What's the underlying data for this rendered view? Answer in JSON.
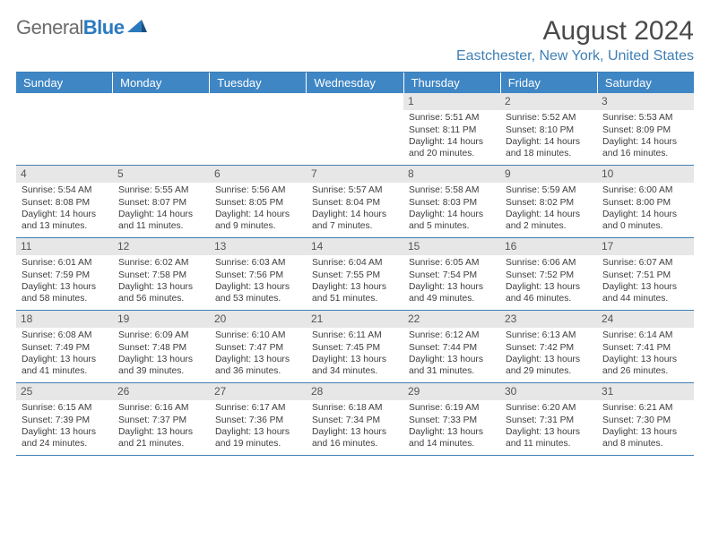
{
  "logo": {
    "general": "General",
    "blue": "Blue"
  },
  "title": "August 2024",
  "location": "Eastchester, New York, United States",
  "colors": {
    "header_bg": "#3f86c5",
    "header_text": "#ffffff",
    "rule": "#3f7fb5",
    "daynum_bg": "#e7e7e7",
    "location": "#3f7fb5",
    "logo_gray": "#6b6b6b",
    "logo_blue": "#2b7abf"
  },
  "weekdays": [
    "Sunday",
    "Monday",
    "Tuesday",
    "Wednesday",
    "Thursday",
    "Friday",
    "Saturday"
  ],
  "weeks": [
    [
      {
        "n": "",
        "sr": "",
        "ss": "",
        "dl": ""
      },
      {
        "n": "",
        "sr": "",
        "ss": "",
        "dl": ""
      },
      {
        "n": "",
        "sr": "",
        "ss": "",
        "dl": ""
      },
      {
        "n": "",
        "sr": "",
        "ss": "",
        "dl": ""
      },
      {
        "n": "1",
        "sr": "Sunrise: 5:51 AM",
        "ss": "Sunset: 8:11 PM",
        "dl": "Daylight: 14 hours and 20 minutes."
      },
      {
        "n": "2",
        "sr": "Sunrise: 5:52 AM",
        "ss": "Sunset: 8:10 PM",
        "dl": "Daylight: 14 hours and 18 minutes."
      },
      {
        "n": "3",
        "sr": "Sunrise: 5:53 AM",
        "ss": "Sunset: 8:09 PM",
        "dl": "Daylight: 14 hours and 16 minutes."
      }
    ],
    [
      {
        "n": "4",
        "sr": "Sunrise: 5:54 AM",
        "ss": "Sunset: 8:08 PM",
        "dl": "Daylight: 14 hours and 13 minutes."
      },
      {
        "n": "5",
        "sr": "Sunrise: 5:55 AM",
        "ss": "Sunset: 8:07 PM",
        "dl": "Daylight: 14 hours and 11 minutes."
      },
      {
        "n": "6",
        "sr": "Sunrise: 5:56 AM",
        "ss": "Sunset: 8:05 PM",
        "dl": "Daylight: 14 hours and 9 minutes."
      },
      {
        "n": "7",
        "sr": "Sunrise: 5:57 AM",
        "ss": "Sunset: 8:04 PM",
        "dl": "Daylight: 14 hours and 7 minutes."
      },
      {
        "n": "8",
        "sr": "Sunrise: 5:58 AM",
        "ss": "Sunset: 8:03 PM",
        "dl": "Daylight: 14 hours and 5 minutes."
      },
      {
        "n": "9",
        "sr": "Sunrise: 5:59 AM",
        "ss": "Sunset: 8:02 PM",
        "dl": "Daylight: 14 hours and 2 minutes."
      },
      {
        "n": "10",
        "sr": "Sunrise: 6:00 AM",
        "ss": "Sunset: 8:00 PM",
        "dl": "Daylight: 14 hours and 0 minutes."
      }
    ],
    [
      {
        "n": "11",
        "sr": "Sunrise: 6:01 AM",
        "ss": "Sunset: 7:59 PM",
        "dl": "Daylight: 13 hours and 58 minutes."
      },
      {
        "n": "12",
        "sr": "Sunrise: 6:02 AM",
        "ss": "Sunset: 7:58 PM",
        "dl": "Daylight: 13 hours and 56 minutes."
      },
      {
        "n": "13",
        "sr": "Sunrise: 6:03 AM",
        "ss": "Sunset: 7:56 PM",
        "dl": "Daylight: 13 hours and 53 minutes."
      },
      {
        "n": "14",
        "sr": "Sunrise: 6:04 AM",
        "ss": "Sunset: 7:55 PM",
        "dl": "Daylight: 13 hours and 51 minutes."
      },
      {
        "n": "15",
        "sr": "Sunrise: 6:05 AM",
        "ss": "Sunset: 7:54 PM",
        "dl": "Daylight: 13 hours and 49 minutes."
      },
      {
        "n": "16",
        "sr": "Sunrise: 6:06 AM",
        "ss": "Sunset: 7:52 PM",
        "dl": "Daylight: 13 hours and 46 minutes."
      },
      {
        "n": "17",
        "sr": "Sunrise: 6:07 AM",
        "ss": "Sunset: 7:51 PM",
        "dl": "Daylight: 13 hours and 44 minutes."
      }
    ],
    [
      {
        "n": "18",
        "sr": "Sunrise: 6:08 AM",
        "ss": "Sunset: 7:49 PM",
        "dl": "Daylight: 13 hours and 41 minutes."
      },
      {
        "n": "19",
        "sr": "Sunrise: 6:09 AM",
        "ss": "Sunset: 7:48 PM",
        "dl": "Daylight: 13 hours and 39 minutes."
      },
      {
        "n": "20",
        "sr": "Sunrise: 6:10 AM",
        "ss": "Sunset: 7:47 PM",
        "dl": "Daylight: 13 hours and 36 minutes."
      },
      {
        "n": "21",
        "sr": "Sunrise: 6:11 AM",
        "ss": "Sunset: 7:45 PM",
        "dl": "Daylight: 13 hours and 34 minutes."
      },
      {
        "n": "22",
        "sr": "Sunrise: 6:12 AM",
        "ss": "Sunset: 7:44 PM",
        "dl": "Daylight: 13 hours and 31 minutes."
      },
      {
        "n": "23",
        "sr": "Sunrise: 6:13 AM",
        "ss": "Sunset: 7:42 PM",
        "dl": "Daylight: 13 hours and 29 minutes."
      },
      {
        "n": "24",
        "sr": "Sunrise: 6:14 AM",
        "ss": "Sunset: 7:41 PM",
        "dl": "Daylight: 13 hours and 26 minutes."
      }
    ],
    [
      {
        "n": "25",
        "sr": "Sunrise: 6:15 AM",
        "ss": "Sunset: 7:39 PM",
        "dl": "Daylight: 13 hours and 24 minutes."
      },
      {
        "n": "26",
        "sr": "Sunrise: 6:16 AM",
        "ss": "Sunset: 7:37 PM",
        "dl": "Daylight: 13 hours and 21 minutes."
      },
      {
        "n": "27",
        "sr": "Sunrise: 6:17 AM",
        "ss": "Sunset: 7:36 PM",
        "dl": "Daylight: 13 hours and 19 minutes."
      },
      {
        "n": "28",
        "sr": "Sunrise: 6:18 AM",
        "ss": "Sunset: 7:34 PM",
        "dl": "Daylight: 13 hours and 16 minutes."
      },
      {
        "n": "29",
        "sr": "Sunrise: 6:19 AM",
        "ss": "Sunset: 7:33 PM",
        "dl": "Daylight: 13 hours and 14 minutes."
      },
      {
        "n": "30",
        "sr": "Sunrise: 6:20 AM",
        "ss": "Sunset: 7:31 PM",
        "dl": "Daylight: 13 hours and 11 minutes."
      },
      {
        "n": "31",
        "sr": "Sunrise: 6:21 AM",
        "ss": "Sunset: 7:30 PM",
        "dl": "Daylight: 13 hours and 8 minutes."
      }
    ]
  ]
}
